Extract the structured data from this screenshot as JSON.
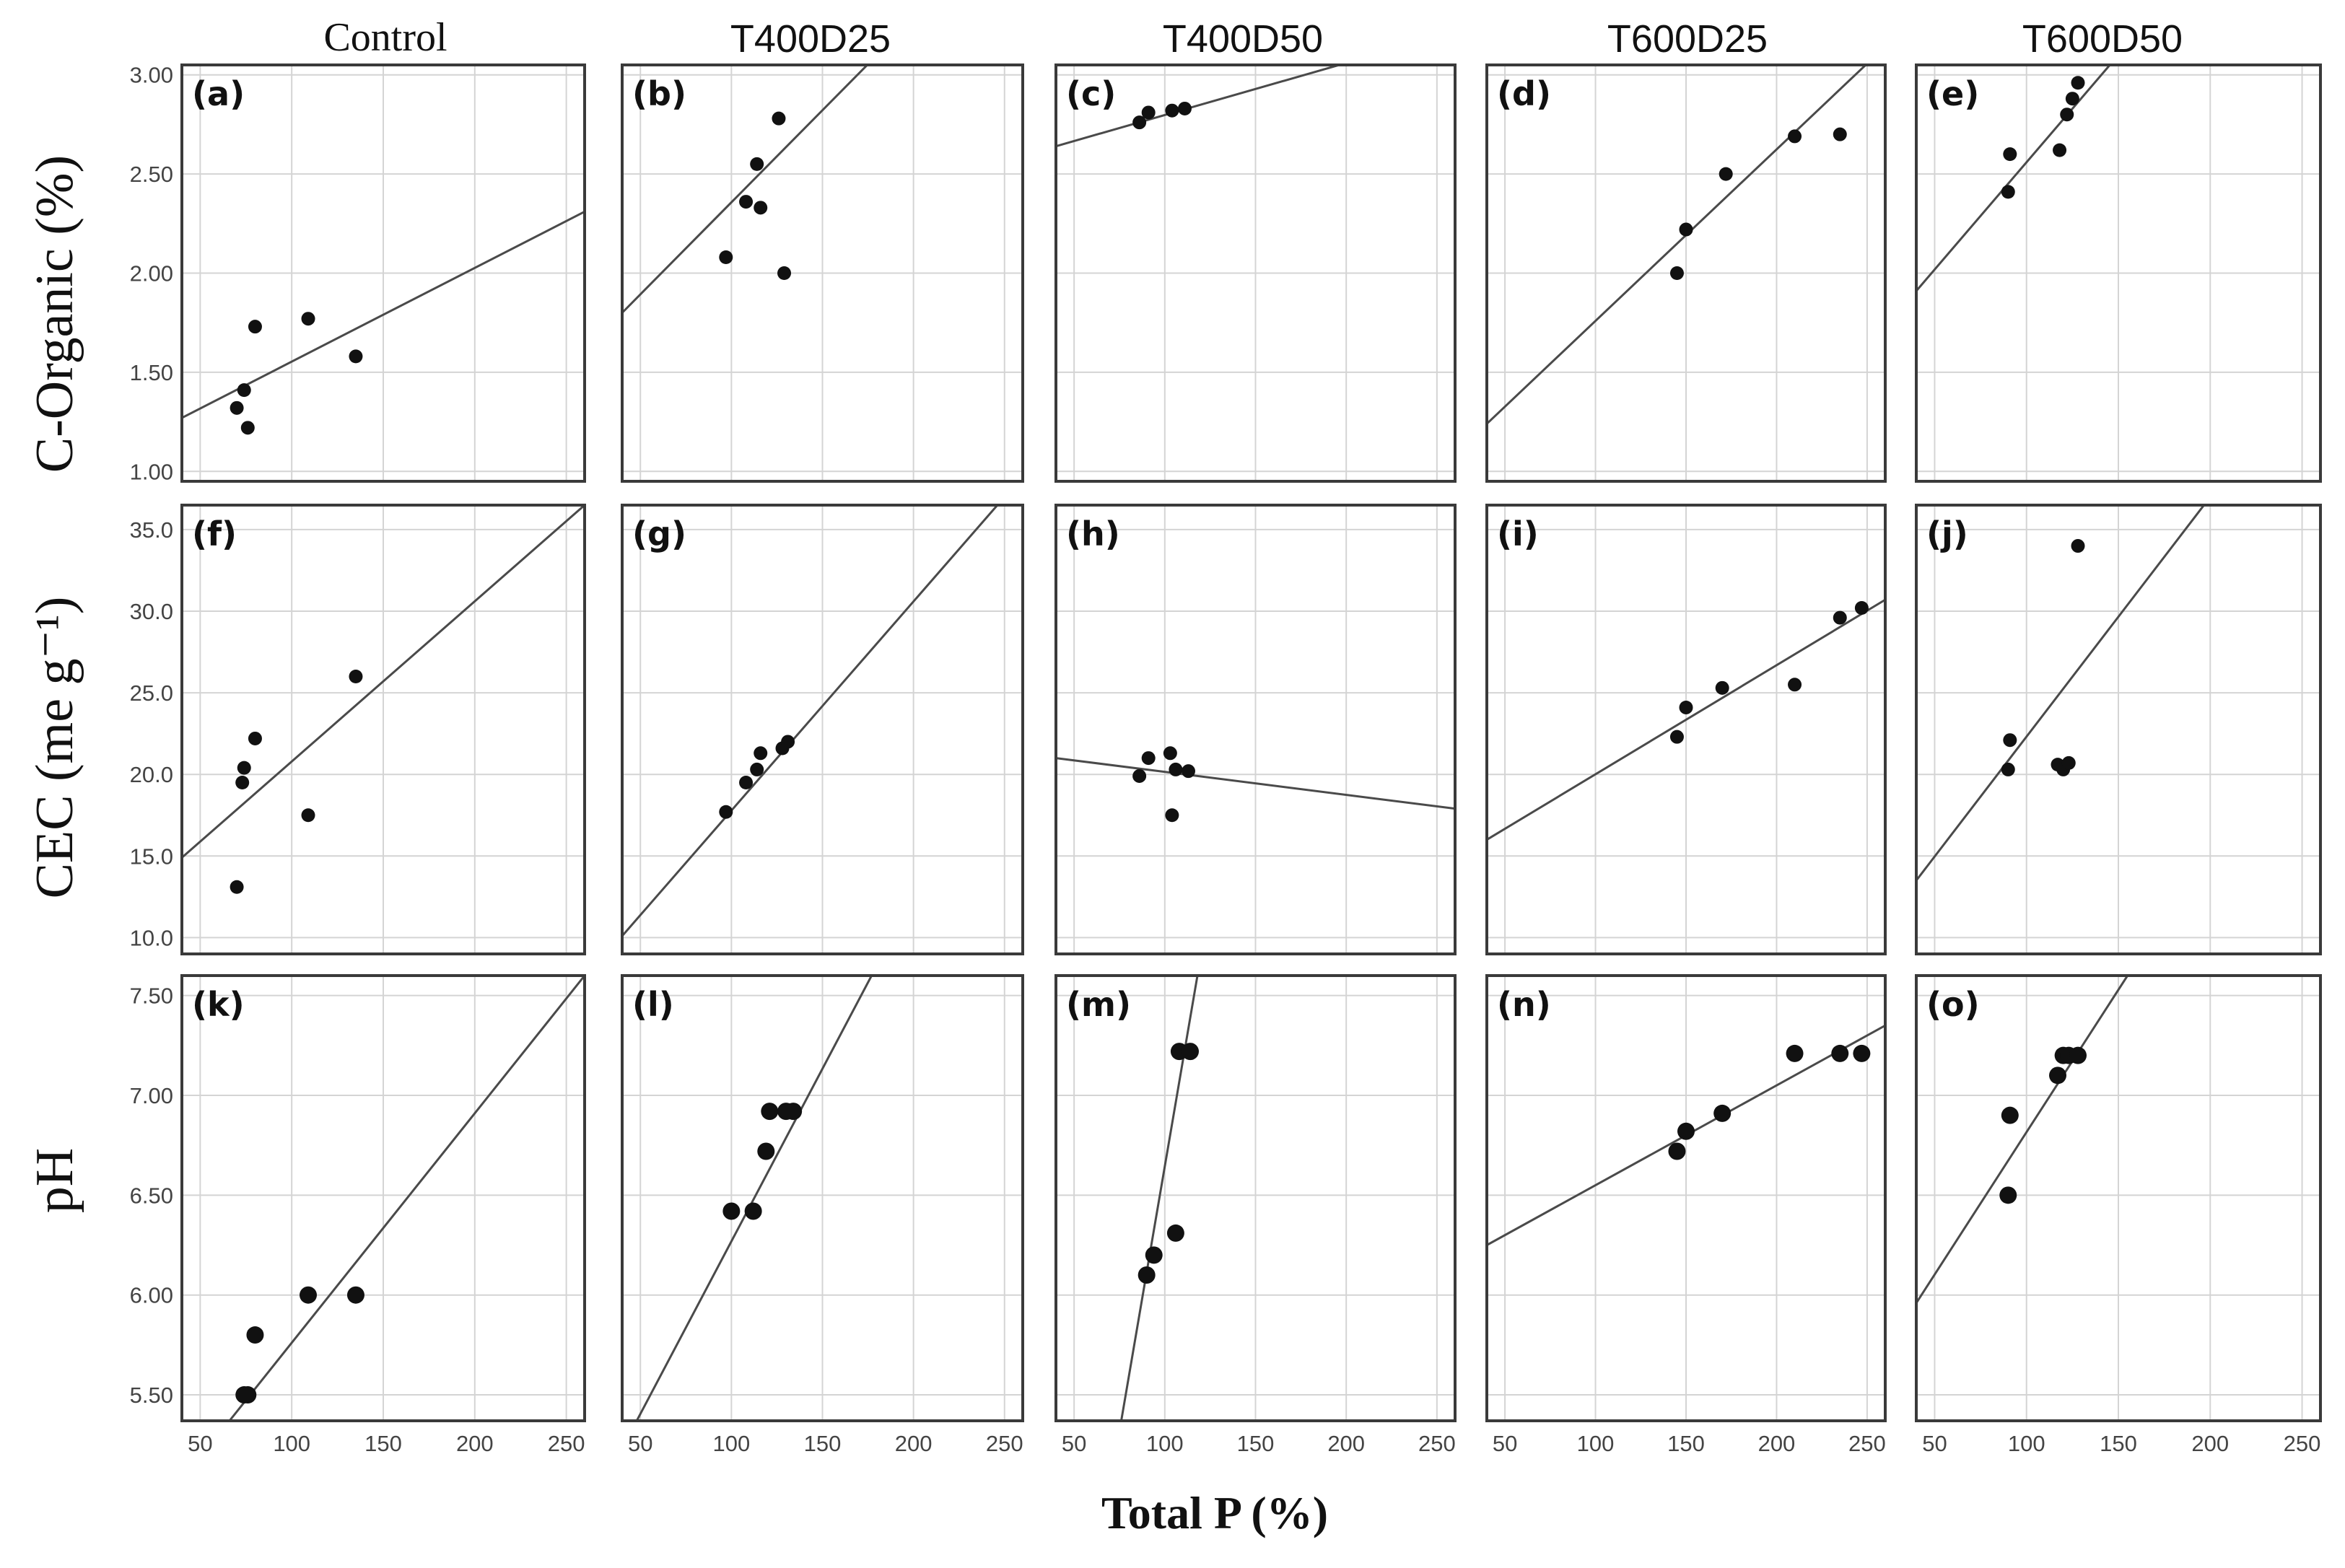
{
  "figure": {
    "x_label": "Total P (%)",
    "col_titles": [
      "Control",
      "T400D25",
      "T400D50",
      "T600D25",
      "T600D50"
    ],
    "row_labels": [
      "C-Organic (%)",
      "CEC (me g⁻¹)",
      "pH"
    ]
  },
  "chart_data": [
    {
      "type": "scatter",
      "panel": "(a)",
      "row": "C-Organic (%)",
      "col": "Control",
      "xlim": [
        40,
        260
      ],
      "ylim": [
        0.95,
        3.05
      ],
      "xticks": [
        "50",
        "100",
        "150",
        "200",
        "250"
      ],
      "yticks": [
        "1.00",
        "1.50",
        "2.00",
        "2.50",
        "3.00"
      ],
      "x": [
        70,
        74,
        76,
        80,
        109,
        135
      ],
      "y": [
        1.32,
        1.41,
        1.22,
        1.73,
        1.77,
        1.58
      ],
      "fit": {
        "x1": 40,
        "y1": 1.27,
        "x2": 260,
        "y2": 2.31
      }
    },
    {
      "type": "scatter",
      "panel": "(b)",
      "row": "C-Organic (%)",
      "col": "T400D25",
      "xlim": [
        40,
        260
      ],
      "ylim": [
        0.95,
        3.05
      ],
      "x": [
        97,
        108,
        114,
        116,
        126,
        129
      ],
      "y": [
        2.08,
        2.36,
        2.55,
        2.33,
        2.78,
        2.0
      ],
      "fit": {
        "x1": 40,
        "y1": 1.8,
        "x2": 180,
        "y2": 3.1
      }
    },
    {
      "type": "scatter",
      "panel": "(c)",
      "row": "C-Organic (%)",
      "col": "T400D50",
      "xlim": [
        40,
        260
      ],
      "ylim": [
        0.95,
        3.05
      ],
      "x": [
        86,
        91,
        104,
        111
      ],
      "y": [
        2.76,
        2.81,
        2.82,
        2.83
      ],
      "fit": {
        "x1": 40,
        "y1": 2.64,
        "x2": 200,
        "y2": 3.06
      }
    },
    {
      "type": "scatter",
      "panel": "(d)",
      "row": "C-Organic (%)",
      "col": "T600D25",
      "xlim": [
        40,
        260
      ],
      "ylim": [
        0.95,
        3.05
      ],
      "x": [
        145,
        150,
        172,
        210,
        235
      ],
      "y": [
        2.0,
        2.22,
        2.5,
        2.69,
        2.7
      ],
      "fit": {
        "x1": 40,
        "y1": 1.24,
        "x2": 255,
        "y2": 3.1
      }
    },
    {
      "type": "scatter",
      "panel": "(e)",
      "row": "C-Organic (%)",
      "col": "T600D50",
      "xlim": [
        40,
        260
      ],
      "ylim": [
        0.95,
        3.05
      ],
      "x": [
        90,
        91,
        118,
        122,
        125,
        128
      ],
      "y": [
        2.41,
        2.6,
        2.62,
        2.8,
        2.88,
        2.96
      ],
      "fit": {
        "x1": 40,
        "y1": 1.91,
        "x2": 150,
        "y2": 3.1
      }
    },
    {
      "type": "scatter",
      "panel": "(f)",
      "row": "CEC (me g⁻¹)",
      "col": "Control",
      "xlim": [
        40,
        260
      ],
      "ylim": [
        9,
        36.5
      ],
      "xticks": [
        "50",
        "100",
        "150",
        "200",
        "250"
      ],
      "yticks": [
        "10.0",
        "15.0",
        "20.0",
        "25.0",
        "30.0",
        "35.0"
      ],
      "x": [
        70,
        73,
        74,
        80,
        109,
        135
      ],
      "y": [
        13.1,
        19.5,
        20.4,
        22.2,
        17.5,
        26.0
      ],
      "fit": {
        "x1": 40,
        "y1": 14.9,
        "x2": 260,
        "y2": 36.5
      }
    },
    {
      "type": "scatter",
      "panel": "(g)",
      "row": "CEC (me g⁻¹)",
      "col": "T400D25",
      "xlim": [
        40,
        260
      ],
      "ylim": [
        9,
        36.5
      ],
      "x": [
        97,
        108,
        114,
        116,
        128,
        131
      ],
      "y": [
        17.7,
        19.5,
        20.3,
        21.3,
        21.6,
        22.0
      ],
      "fit": {
        "x1": 40,
        "y1": 10.1,
        "x2": 250,
        "y2": 37
      }
    },
    {
      "type": "scatter",
      "panel": "(h)",
      "row": "CEC (me g⁻¹)",
      "col": "T400D50",
      "xlim": [
        40,
        260
      ],
      "ylim": [
        9,
        36.5
      ],
      "x": [
        86,
        91,
        103,
        104,
        106,
        113
      ],
      "y": [
        19.9,
        21.0,
        21.3,
        17.5,
        20.3,
        20.2
      ],
      "fit": {
        "x1": 40,
        "y1": 21.0,
        "x2": 260,
        "y2": 17.9
      }
    },
    {
      "type": "scatter",
      "panel": "(i)",
      "row": "CEC (me g⁻¹)",
      "col": "T600D25",
      "xlim": [
        40,
        260
      ],
      "ylim": [
        9,
        36.5
      ],
      "x": [
        145,
        150,
        170,
        210,
        235,
        247
      ],
      "y": [
        22.3,
        24.1,
        25.3,
        25.5,
        29.6,
        30.2
      ],
      "fit": {
        "x1": 40,
        "y1": 16.0,
        "x2": 260,
        "y2": 30.7
      }
    },
    {
      "type": "scatter",
      "panel": "(j)",
      "row": "CEC (me g⁻¹)",
      "col": "T600D50",
      "xlim": [
        40,
        260
      ],
      "ylim": [
        9,
        36.5
      ],
      "x": [
        90,
        91,
        117,
        120,
        123,
        128
      ],
      "y": [
        20.3,
        22.1,
        20.6,
        20.3,
        20.7,
        34.0
      ],
      "fit": {
        "x1": 40,
        "y1": 13.5,
        "x2": 200,
        "y2": 37
      }
    },
    {
      "type": "scatter",
      "panel": "(k)",
      "row": "pH",
      "col": "Control",
      "xlim": [
        40,
        260
      ],
      "ylim": [
        5.37,
        7.6
      ],
      "xticks": [
        "50",
        "100",
        "150",
        "200",
        "250"
      ],
      "yticks": [
        "5.50",
        "6.00",
        "6.50",
        "7.00",
        "7.50"
      ],
      "x": [
        74,
        76,
        80,
        109,
        135
      ],
      "y": [
        5.5,
        5.5,
        5.8,
        6.0,
        6.0
      ],
      "fit": {
        "x1": 66,
        "y1": 5.37,
        "x2": 260,
        "y2": 7.6
      }
    },
    {
      "type": "scatter",
      "panel": "(l)",
      "row": "pH",
      "col": "T400D25",
      "xlim": [
        40,
        260
      ],
      "ylim": [
        5.37,
        7.6
      ],
      "x": [
        100,
        112,
        119,
        121,
        130,
        134
      ],
      "y": [
        6.42,
        6.42,
        6.72,
        6.92,
        6.92,
        6.92
      ],
      "fit": {
        "x1": 48,
        "y1": 5.37,
        "x2": 177,
        "y2": 7.6
      }
    },
    {
      "type": "scatter",
      "panel": "(m)",
      "row": "pH",
      "col": "T400D50",
      "xlim": [
        40,
        260
      ],
      "ylim": [
        5.37,
        7.6
      ],
      "x": [
        90,
        94,
        106,
        108,
        114
      ],
      "y": [
        6.1,
        6.2,
        6.31,
        7.22,
        7.22
      ],
      "fit": {
        "x1": 76,
        "y1": 5.37,
        "x2": 118,
        "y2": 7.6
      }
    },
    {
      "type": "scatter",
      "panel": "(n)",
      "row": "pH",
      "col": "T600D25",
      "xlim": [
        40,
        260
      ],
      "ylim": [
        5.37,
        7.6
      ],
      "x": [
        145,
        150,
        170,
        210,
        235,
        247
      ],
      "y": [
        6.72,
        6.82,
        6.91,
        7.21,
        7.21,
        7.21
      ],
      "fit": {
        "x1": 40,
        "y1": 6.25,
        "x2": 260,
        "y2": 7.35
      }
    },
    {
      "type": "scatter",
      "panel": "(o)",
      "row": "pH",
      "col": "T600D50",
      "xlim": [
        40,
        260
      ],
      "ylim": [
        5.37,
        7.6
      ],
      "x": [
        90,
        91,
        117,
        120,
        123,
        128
      ],
      "y": [
        6.5,
        6.9,
        7.1,
        7.2,
        7.2,
        7.2
      ],
      "fit": {
        "x1": 40,
        "y1": 5.96,
        "x2": 155,
        "y2": 7.6
      }
    }
  ]
}
